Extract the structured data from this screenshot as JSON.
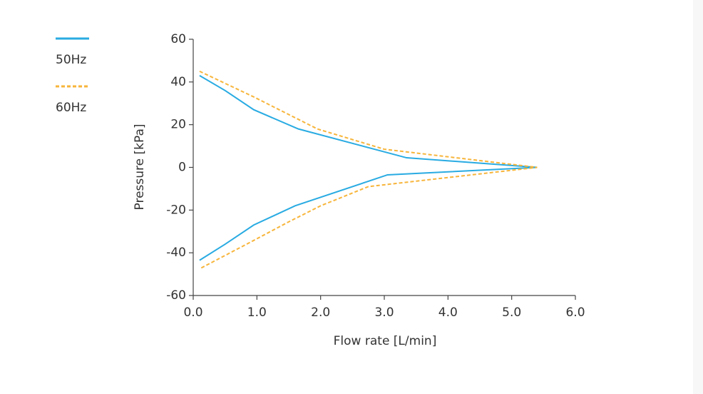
{
  "chart_data": {
    "type": "line",
    "xlabel": "Flow rate [L/min]",
    "ylabel": "Pressure [kPa]",
    "series": [
      {
        "name": "50Hz",
        "color": "#29abe2",
        "linestyle": "solid",
        "x": [
          0.1,
          0.5,
          0.95,
          1.65,
          3.35,
          5.4,
          3.05,
          1.6,
          0.95,
          0.5,
          0.1
        ],
        "values": [
          43,
          36,
          27,
          18,
          4.5,
          0,
          -3.5,
          -18,
          -27,
          -36,
          -43.5
        ]
      },
      {
        "name": "60Hz",
        "color": "#f7b53b",
        "linestyle": "dashed",
        "x": [
          0.1,
          0.95,
          1.95,
          3.0,
          5.4,
          2.75,
          2.0,
          1.5,
          0.9,
          0.1
        ],
        "values": [
          45,
          33,
          18,
          8.5,
          0,
          -9,
          -18,
          -25.5,
          -35,
          -47.5
        ]
      }
    ],
    "xlim": [
      0,
      6
    ],
    "xticks": [
      {
        "value": 0,
        "label": "0.0"
      },
      {
        "value": 1,
        "label": "1.0"
      },
      {
        "value": 2,
        "label": "2.0"
      },
      {
        "value": 3,
        "label": "3.0"
      },
      {
        "value": 4,
        "label": "4.0"
      },
      {
        "value": 5,
        "label": "5.0"
      },
      {
        "value": 6,
        "label": "6.0"
      }
    ],
    "ylim": [
      -60,
      60
    ],
    "yticks": [
      60,
      40,
      20,
      0,
      -20,
      -40,
      -60
    ],
    "grid": false,
    "legend": "upper left"
  }
}
